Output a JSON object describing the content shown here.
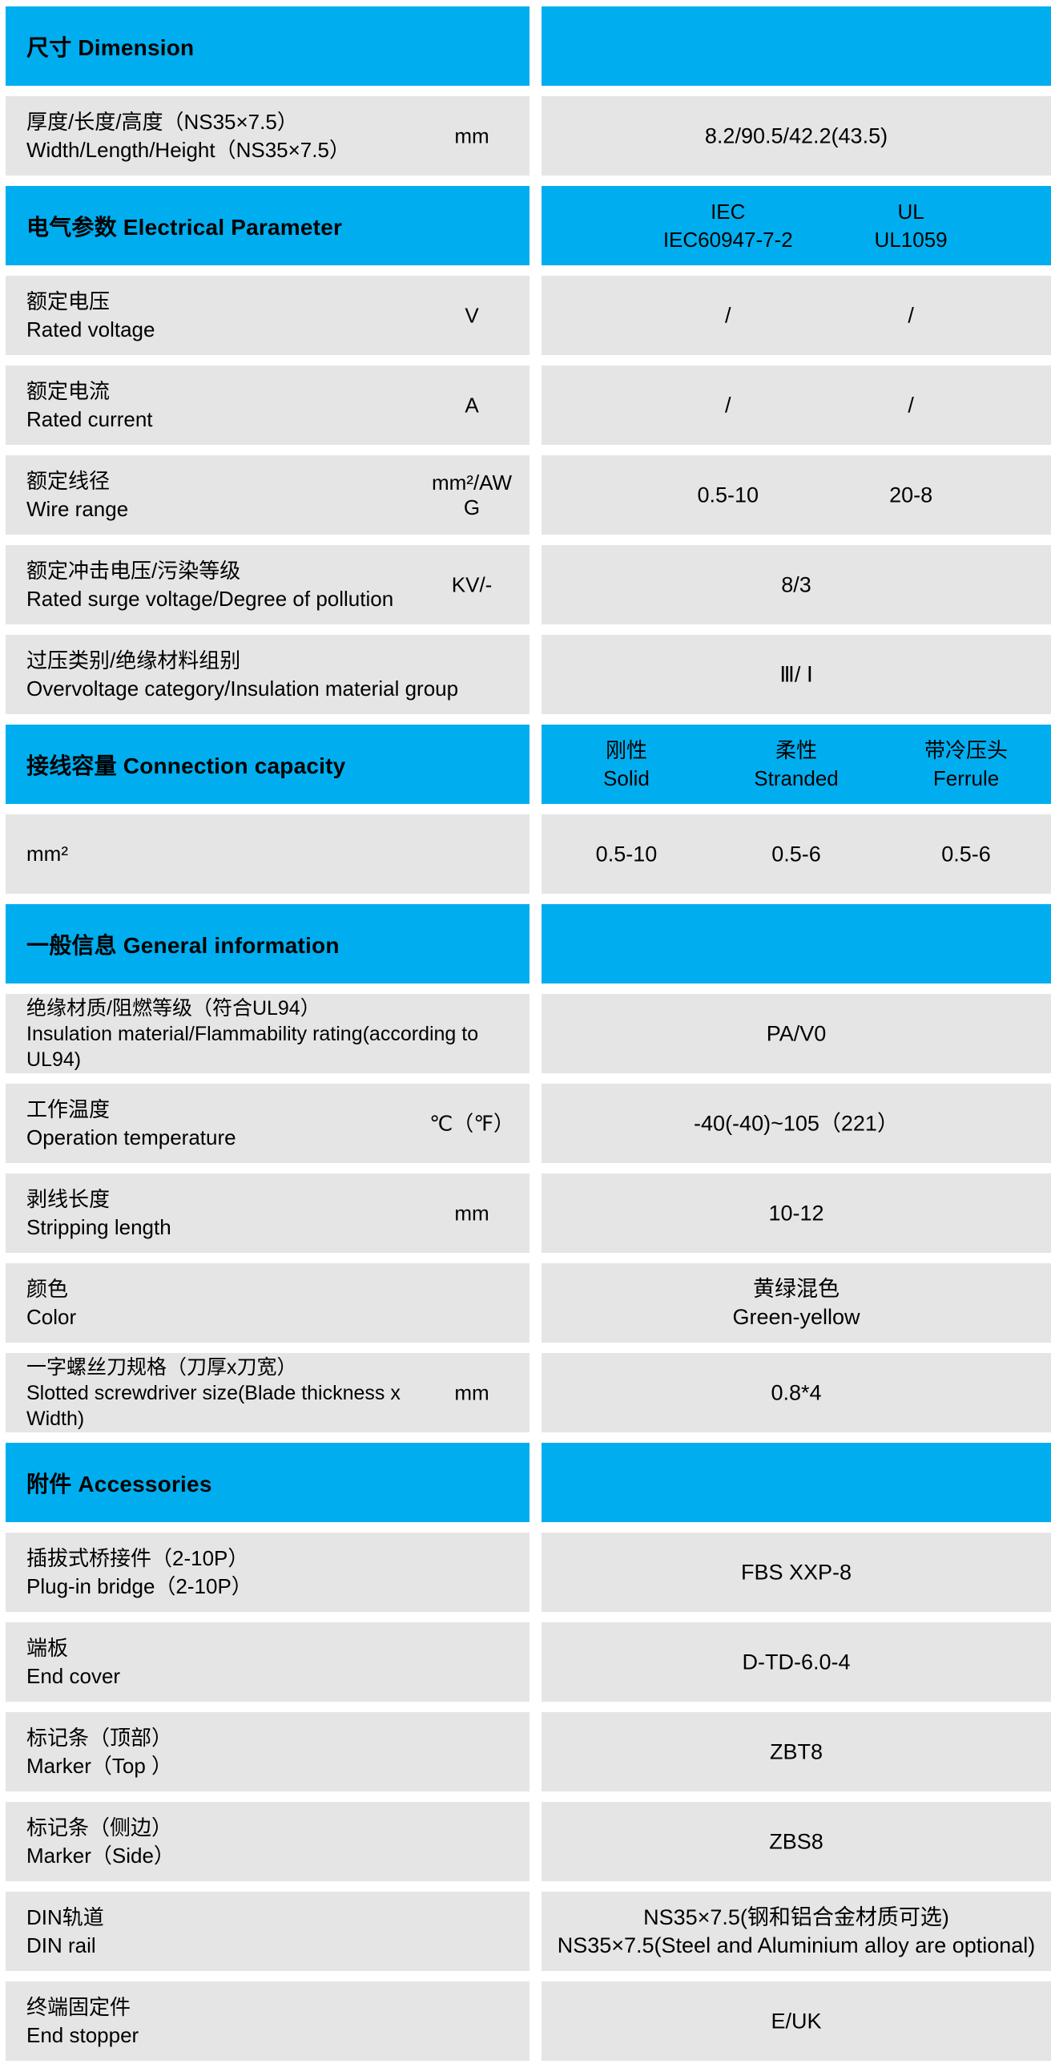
{
  "page": {
    "accent_blue": "#00aeef",
    "row_gray": "#e6e5e6",
    "text_color": "#000000"
  },
  "rows": [
    {
      "type": "header",
      "zh": "尺寸",
      "en": "Dimension"
    },
    {
      "type": "row",
      "name_lines": [
        "厚度/长度/高度（NS35×7.5）",
        "Width/Length/Height（NS35×7.5）"
      ],
      "unit_lines": [
        "mm"
      ],
      "values": [
        {
          "col": "center",
          "lines": [
            "8.2/90.5/42.2(43.5)"
          ]
        }
      ]
    },
    {
      "type": "header",
      "zh": "电气参数",
      "en": "Electrical Parameter",
      "cols": [
        {
          "col": "c1of2",
          "lines": [
            "IEC",
            "IEC60947-7-2"
          ]
        },
        {
          "col": "c2of2",
          "lines": [
            "UL",
            "UL1059"
          ]
        }
      ]
    },
    {
      "type": "row",
      "name_lines": [
        "额定电压",
        "Rated voltage"
      ],
      "unit_lines": [
        "V"
      ],
      "values": [
        {
          "col": "c1of2",
          "lines": [
            "/"
          ]
        },
        {
          "col": "c2of2",
          "lines": [
            "/"
          ]
        }
      ]
    },
    {
      "type": "row",
      "name_lines": [
        "额定电流",
        "Rated current"
      ],
      "unit_lines": [
        "A"
      ],
      "values": [
        {
          "col": "c1of2",
          "lines": [
            "/"
          ]
        },
        {
          "col": "c2of2",
          "lines": [
            "/"
          ]
        }
      ]
    },
    {
      "type": "row",
      "name_lines": [
        "额定线径",
        "Wire range"
      ],
      "unit_lines": [
        "mm²/AW",
        "G"
      ],
      "values": [
        {
          "col": "c1of2",
          "lines": [
            "0.5-10"
          ]
        },
        {
          "col": "c2of2",
          "lines": [
            "20-8"
          ]
        }
      ]
    },
    {
      "type": "row",
      "name_lines": [
        "额定冲击电压/污染等级",
        "Rated surge voltage/Degree of pollution"
      ],
      "unit_lines": [
        "KV/-"
      ],
      "values": [
        {
          "col": "center",
          "lines": [
            "8/3"
          ]
        }
      ]
    },
    {
      "type": "row",
      "name_lines": [
        "过压类别/绝缘材料组别",
        "Overvoltage category/Insulation material group"
      ],
      "unit_lines": [],
      "values": [
        {
          "col": "center",
          "lines": [
            "Ⅲ/ Ⅰ"
          ]
        }
      ]
    },
    {
      "type": "header",
      "zh": "接线容量",
      "en": "Connection capacity",
      "cols": [
        {
          "col": "c1of3",
          "lines": [
            "刚性",
            "Solid"
          ]
        },
        {
          "col": "c2of3",
          "lines": [
            "柔性",
            "Stranded"
          ]
        },
        {
          "col": "c3of3",
          "lines": [
            "带冷压头",
            "Ferrule"
          ]
        }
      ]
    },
    {
      "type": "row",
      "name_lines": [
        "mm²"
      ],
      "unit_lines": [],
      "values": [
        {
          "col": "c1of3",
          "lines": [
            "0.5-10"
          ]
        },
        {
          "col": "c2of3",
          "lines": [
            "0.5-6"
          ]
        },
        {
          "col": "c3of3",
          "lines": [
            "0.5-6"
          ]
        }
      ]
    },
    {
      "type": "header",
      "zh": "一般信息",
      "en": "General information"
    },
    {
      "type": "row",
      "name_lines": [
        "绝缘材质/阻燃等级（符合UL94）",
        "Insulation material/Flammability rating(according to",
        "UL94)"
      ],
      "unit_lines": [],
      "values": [
        {
          "col": "center",
          "lines": [
            "PA/V0"
          ]
        }
      ]
    },
    {
      "type": "row",
      "name_lines": [
        "工作温度",
        "Operation temperature"
      ],
      "unit_lines": [
        "℃（℉）"
      ],
      "values": [
        {
          "col": "center",
          "lines": [
            "-40(-40)~105（221）"
          ]
        }
      ]
    },
    {
      "type": "row",
      "name_lines": [
        "剥线长度",
        "Stripping length"
      ],
      "unit_lines": [
        "mm"
      ],
      "values": [
        {
          "col": "center",
          "lines": [
            "10-12"
          ]
        }
      ]
    },
    {
      "type": "row",
      "name_lines": [
        "颜色",
        "Color"
      ],
      "unit_lines": [],
      "values": [
        {
          "col": "center",
          "lines": [
            "黄绿混色",
            "Green-yellow"
          ]
        }
      ]
    },
    {
      "type": "row",
      "name_lines": [
        "一字螺丝刀规格（刀厚x刀宽）",
        "Slotted screwdriver size(Blade thickness x",
        "Width)"
      ],
      "unit_lines": [
        "mm"
      ],
      "values": [
        {
          "col": "center",
          "lines": [
            "0.8*4"
          ]
        }
      ]
    },
    {
      "type": "header",
      "zh": "附件",
      "en": "Accessories"
    },
    {
      "type": "row",
      "name_lines": [
        "插拔式桥接件（2-10P）",
        "Plug-in bridge（2-10P）"
      ],
      "unit_lines": [],
      "values": [
        {
          "col": "center",
          "lines": [
            "FBS XXP-8"
          ]
        }
      ]
    },
    {
      "type": "row",
      "name_lines": [
        "端板",
        "End cover"
      ],
      "unit_lines": [],
      "values": [
        {
          "col": "center",
          "lines": [
            "D-TD-6.0-4"
          ]
        }
      ]
    },
    {
      "type": "row",
      "name_lines": [
        "标记条（顶部）",
        "Marker（Top ）"
      ],
      "unit_lines": [],
      "values": [
        {
          "col": "center",
          "lines": [
            "ZBT8"
          ]
        }
      ]
    },
    {
      "type": "row",
      "name_lines": [
        "标记条（侧边）",
        "Marker（Side）"
      ],
      "unit_lines": [],
      "values": [
        {
          "col": "center",
          "lines": [
            "ZBS8"
          ]
        }
      ]
    },
    {
      "type": "row",
      "name_lines": [
        "DIN轨道",
        "DIN rail"
      ],
      "unit_lines": [],
      "values": [
        {
          "col": "center",
          "lines": [
            "NS35×7.5(钢和铝合金材质可选)",
            "NS35×7.5(Steel and Aluminium alloy are optional)"
          ]
        }
      ]
    },
    {
      "type": "row",
      "name_lines": [
        "终端固定件",
        "End stopper"
      ],
      "unit_lines": [],
      "values": [
        {
          "col": "center",
          "lines": [
            "E/UK"
          ]
        }
      ]
    }
  ]
}
